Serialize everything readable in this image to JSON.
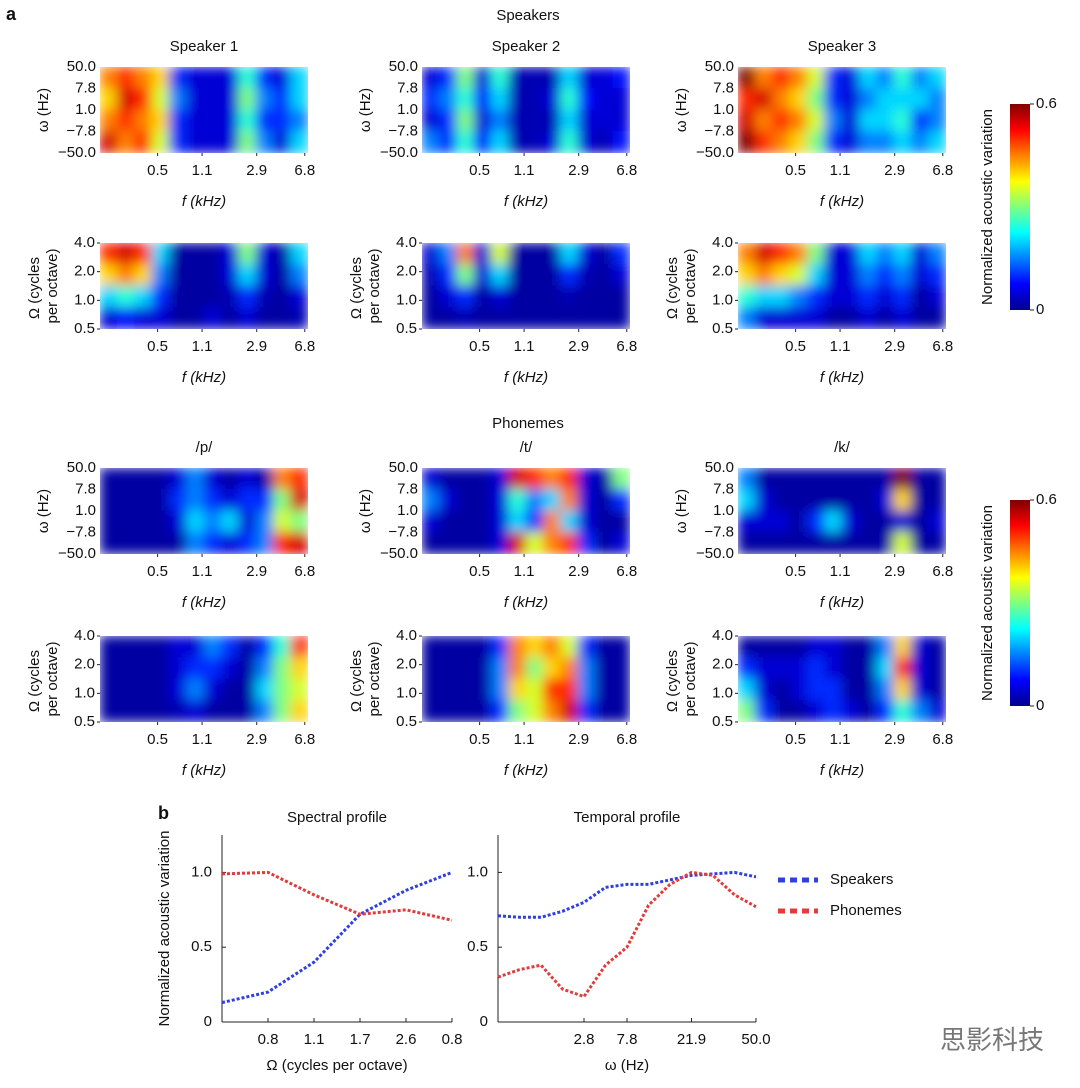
{
  "figure": {
    "label_a": "a",
    "label_b": "b",
    "watermark": "思影科技",
    "groups": [
      {
        "title": "Speakers",
        "colorbar": {
          "label": "Normalized acoustic variation",
          "clim": [
            0,
            0.6
          ],
          "ticks": [
            0,
            0.6
          ]
        }
      },
      {
        "title": "Phonemes",
        "colorbar": {
          "label": "Normalized acoustic variation",
          "clim": [
            0,
            0.6
          ],
          "ticks": [
            0,
            0.6
          ]
        }
      }
    ]
  },
  "chart_data": [
    {
      "type": "heatmap",
      "title": "Speaker 1",
      "xlabel": "f (kHz)",
      "xscale": "log",
      "xlim": [
        0.18,
        7.2
      ],
      "xticks": [
        0.5,
        1.1,
        2.9,
        6.8
      ],
      "ylabel": "ω (Hz)",
      "ycategories": [
        "50.0",
        "7.8",
        "1.0",
        "−7.8",
        "−50.0"
      ],
      "z": [
        [
          0.45,
          0.5,
          0.45,
          0.4,
          0.1,
          0.05,
          0.05,
          0.05,
          0.25,
          0.1,
          0.05,
          0.2
        ],
        [
          0.4,
          0.55,
          0.5,
          0.35,
          0.15,
          0.05,
          0.05,
          0.05,
          0.3,
          0.15,
          0.1,
          0.2
        ],
        [
          0.45,
          0.5,
          0.45,
          0.4,
          0.1,
          0.05,
          0.05,
          0.05,
          0.25,
          0.1,
          0.1,
          0.15
        ],
        [
          0.55,
          0.45,
          0.5,
          0.35,
          0.1,
          0.05,
          0.05,
          0.05,
          0.3,
          0.15,
          0.05,
          0.2
        ]
      ]
    },
    {
      "type": "heatmap",
      "title": "Speaker 2",
      "xlabel": "f (kHz)",
      "xscale": "log",
      "xlim": [
        0.18,
        7.2
      ],
      "xticks": [
        0.5,
        1.1,
        2.9,
        6.8
      ],
      "ylabel": "ω (Hz)",
      "ycategories": [
        "50.0",
        "7.8",
        "1.0",
        "−7.8",
        "−50.0"
      ],
      "z": [
        [
          0.05,
          0.1,
          0.3,
          0.05,
          0.25,
          0.03,
          0.03,
          0.03,
          0.2,
          0.05,
          0.05,
          0.08
        ],
        [
          0.1,
          0.15,
          0.25,
          0.08,
          0.2,
          0.03,
          0.03,
          0.05,
          0.25,
          0.08,
          0.05,
          0.05
        ],
        [
          0.05,
          0.1,
          0.3,
          0.05,
          0.15,
          0.03,
          0.03,
          0.03,
          0.2,
          0.05,
          0.05,
          0.05
        ],
        [
          0.15,
          0.1,
          0.25,
          0.08,
          0.2,
          0.03,
          0.03,
          0.05,
          0.25,
          0.05,
          0.03,
          0.08
        ]
      ]
    },
    {
      "type": "heatmap",
      "title": "Speaker 3",
      "xlabel": "f (kHz)",
      "xscale": "log",
      "xlim": [
        0.18,
        7.2
      ],
      "xticks": [
        0.5,
        1.1,
        2.9,
        6.8
      ],
      "ylabel": "ω (Hz)",
      "ycategories": [
        "50.0",
        "7.8",
        "1.0",
        "−7.8",
        "−50.0"
      ],
      "z": [
        [
          0.6,
          0.45,
          0.5,
          0.45,
          0.35,
          0.1,
          0.05,
          0.2,
          0.15,
          0.25,
          0.15,
          0.2
        ],
        [
          0.5,
          0.55,
          0.45,
          0.4,
          0.3,
          0.1,
          0.05,
          0.15,
          0.2,
          0.2,
          0.2,
          0.15
        ],
        [
          0.55,
          0.45,
          0.5,
          0.45,
          0.35,
          0.15,
          0.05,
          0.2,
          0.2,
          0.25,
          0.1,
          0.15
        ],
        [
          0.6,
          0.5,
          0.45,
          0.4,
          0.3,
          0.1,
          0.05,
          0.15,
          0.15,
          0.2,
          0.15,
          0.2
        ]
      ]
    },
    {
      "type": "heatmap",
      "xlabel": "f (kHz)",
      "xscale": "log",
      "xlim": [
        0.18,
        7.2
      ],
      "xticks": [
        0.5,
        1.1,
        2.9,
        6.8
      ],
      "ylabel": "Ω (cycles per octave)",
      "yscale": "log",
      "ylim": [
        0.5,
        4
      ],
      "yticks": [
        {
          "value": 4,
          "label": "4.0"
        },
        {
          "value": 2,
          "label": "2.0"
        },
        {
          "value": 1,
          "label": "1.0"
        },
        0.5
      ],
      "z": [
        [
          0.5,
          0.55,
          0.5,
          0.2,
          0.02,
          0.02,
          0.02,
          0.05,
          0.3,
          0.05,
          0.02,
          0.2
        ],
        [
          0.4,
          0.45,
          0.4,
          0.15,
          0.02,
          0.02,
          0.02,
          0.05,
          0.2,
          0.05,
          0.02,
          0.15
        ],
        [
          0.2,
          0.25,
          0.2,
          0.1,
          0.02,
          0.02,
          0.02,
          0.03,
          0.1,
          0.03,
          0.02,
          0.05
        ],
        [
          0.05,
          0.08,
          0.05,
          0.05,
          0.02,
          0.02,
          0.05,
          0.02,
          0.05,
          0.02,
          0.02,
          0.03
        ]
      ]
    },
    {
      "type": "heatmap",
      "xlabel": "f (kHz)",
      "xscale": "log",
      "xlim": [
        0.18,
        7.2
      ],
      "xticks": [
        0.5,
        1.1,
        2.9,
        6.8
      ],
      "ylabel": "Ω (cycles per octave)",
      "yscale": "log",
      "ylim": [
        0.5,
        4
      ],
      "yticks": [
        {
          "value": 4,
          "label": "4.0"
        },
        {
          "value": 2,
          "label": "2.0"
        },
        {
          "value": 1,
          "label": "1.0"
        },
        0.5
      ],
      "z": [
        [
          0.05,
          0.15,
          0.45,
          0.05,
          0.35,
          0.02,
          0.02,
          0.02,
          0.2,
          0.05,
          0.02,
          0.1
        ],
        [
          0.03,
          0.1,
          0.3,
          0.05,
          0.2,
          0.02,
          0.02,
          0.02,
          0.1,
          0.03,
          0.02,
          0.05
        ],
        [
          0.02,
          0.05,
          0.1,
          0.02,
          0.05,
          0.02,
          0.02,
          0.02,
          0.03,
          0.02,
          0.02,
          0.02
        ],
        [
          0.02,
          0.02,
          0.03,
          0.02,
          0.02,
          0.02,
          0.02,
          0.02,
          0.02,
          0.02,
          0.02,
          0.02
        ]
      ]
    },
    {
      "type": "heatmap",
      "xlabel": "f (kHz)",
      "xscale": "log",
      "xlim": [
        0.18,
        7.2
      ],
      "xticks": [
        0.5,
        1.1,
        2.9,
        6.8
      ],
      "ylabel": "Ω (cycles per octave)",
      "yscale": "log",
      "ylim": [
        0.5,
        4
      ],
      "yticks": [
        {
          "value": 4,
          "label": "4.0"
        },
        {
          "value": 2,
          "label": "2.0"
        },
        {
          "value": 1,
          "label": "1.0"
        },
        0.5
      ],
      "z": [
        [
          0.45,
          0.55,
          0.5,
          0.45,
          0.3,
          0.05,
          0.05,
          0.2,
          0.15,
          0.2,
          0.05,
          0.15
        ],
        [
          0.4,
          0.45,
          0.4,
          0.35,
          0.2,
          0.05,
          0.05,
          0.15,
          0.1,
          0.15,
          0.05,
          0.1
        ],
        [
          0.25,
          0.2,
          0.2,
          0.15,
          0.1,
          0.05,
          0.05,
          0.1,
          0.05,
          0.1,
          0.02,
          0.05
        ],
        [
          0.15,
          0.05,
          0.05,
          0.05,
          0.05,
          0.02,
          0.02,
          0.05,
          0.02,
          0.05,
          0.02,
          0.02
        ]
      ]
    },
    {
      "type": "heatmap",
      "title": "/p/",
      "xlabel": "f (kHz)",
      "xscale": "log",
      "xlim": [
        0.18,
        7.2
      ],
      "xticks": [
        0.5,
        1.1,
        2.9,
        6.8
      ],
      "ylabel": "ω (Hz)",
      "ycategories": [
        "50.0",
        "7.8",
        "1.0",
        "−7.8",
        "−50.0"
      ],
      "z": [
        [
          0.02,
          0.02,
          0.02,
          0.02,
          0.05,
          0.15,
          0.05,
          0.02,
          0.05,
          0.02,
          0.45,
          0.5
        ],
        [
          0.02,
          0.02,
          0.02,
          0.02,
          0.1,
          0.15,
          0.1,
          0.05,
          0.1,
          0.1,
          0.3,
          0.55
        ],
        [
          0.02,
          0.02,
          0.02,
          0.02,
          0.05,
          0.2,
          0.15,
          0.2,
          0.05,
          0.15,
          0.35,
          0.3
        ],
        [
          0.02,
          0.02,
          0.02,
          0.02,
          0.02,
          0.15,
          0.1,
          0.05,
          0.1,
          0.15,
          0.5,
          0.55
        ]
      ]
    },
    {
      "type": "heatmap",
      "title": "/t/",
      "xlabel": "f (kHz)",
      "xscale": "log",
      "xlim": [
        0.18,
        7.2
      ],
      "xticks": [
        0.5,
        1.1,
        2.9,
        6.8
      ],
      "ylabel": "ω (Hz)",
      "ycategories": [
        "50.0",
        "7.8",
        "1.0",
        "−7.8",
        "−50.0"
      ],
      "z": [
        [
          0.05,
          0.02,
          0.02,
          0.02,
          0.05,
          0.55,
          0.5,
          0.45,
          0.5,
          0.05,
          0.02,
          0.3
        ],
        [
          0.15,
          0.05,
          0.02,
          0.02,
          0.05,
          0.25,
          0.15,
          0.2,
          0.45,
          0.05,
          0.02,
          0.1
        ],
        [
          0.05,
          0.02,
          0.02,
          0.02,
          0.05,
          0.2,
          0.1,
          0.45,
          0.2,
          0.05,
          0.02,
          0.02
        ],
        [
          0.02,
          0.02,
          0.02,
          0.02,
          0.05,
          0.55,
          0.35,
          0.45,
          0.5,
          0.1,
          0.02,
          0.05
        ]
      ]
    },
    {
      "type": "heatmap",
      "title": "/k/",
      "xlabel": "f (kHz)",
      "xscale": "log",
      "xlim": [
        0.18,
        7.2
      ],
      "xticks": [
        0.5,
        1.1,
        2.9,
        6.8
      ],
      "ylabel": "ω (Hz)",
      "ycategories": [
        "50.0",
        "7.8",
        "1.0",
        "−7.8",
        "−50.0"
      ],
      "z": [
        [
          0.15,
          0.02,
          0.02,
          0.02,
          0.02,
          0.02,
          0.02,
          0.02,
          0.02,
          0.6,
          0.02,
          0.02
        ],
        [
          0.2,
          0.05,
          0.02,
          0.02,
          0.02,
          0.02,
          0.02,
          0.02,
          0.05,
          0.4,
          0.02,
          0.02
        ],
        [
          0.05,
          0.05,
          0.05,
          0.02,
          0.1,
          0.2,
          0.05,
          0.02,
          0.02,
          0.05,
          0.02,
          0.05
        ],
        [
          0.02,
          0.02,
          0.02,
          0.02,
          0.02,
          0.02,
          0.02,
          0.02,
          0.02,
          0.35,
          0.02,
          0.02
        ]
      ]
    },
    {
      "type": "heatmap",
      "xlabel": "f (kHz)",
      "xscale": "log",
      "xlim": [
        0.18,
        7.2
      ],
      "xticks": [
        0.5,
        1.1,
        2.9,
        6.8
      ],
      "ylabel": "Ω (cycles per octave)",
      "yscale": "log",
      "ylim": [
        0.5,
        4
      ],
      "yticks": [
        {
          "value": 4,
          "label": "4.0"
        },
        {
          "value": 2,
          "label": "2.0"
        },
        {
          "value": 1,
          "label": "1.0"
        },
        0.5
      ],
      "z": [
        [
          0.02,
          0.02,
          0.02,
          0.02,
          0.05,
          0.05,
          0.15,
          0.1,
          0.02,
          0.1,
          0.25,
          0.5
        ],
        [
          0.02,
          0.02,
          0.02,
          0.02,
          0.05,
          0.1,
          0.1,
          0.05,
          0.02,
          0.15,
          0.3,
          0.4
        ],
        [
          0.02,
          0.02,
          0.02,
          0.02,
          0.05,
          0.15,
          0.05,
          0.02,
          0.02,
          0.2,
          0.3,
          0.35
        ],
        [
          0.02,
          0.02,
          0.02,
          0.02,
          0.03,
          0.05,
          0.02,
          0.02,
          0.02,
          0.15,
          0.3,
          0.4
        ]
      ]
    },
    {
      "type": "heatmap",
      "xlabel": "f (kHz)",
      "xscale": "log",
      "xlim": [
        0.18,
        7.2
      ],
      "xticks": [
        0.5,
        1.1,
        2.9,
        6.8
      ],
      "ylabel": "Ω (cycles per octave)",
      "yscale": "log",
      "ylim": [
        0.5,
        4
      ],
      "yticks": [
        {
          "value": 4,
          "label": "4.0"
        },
        {
          "value": 2,
          "label": "2.0"
        },
        {
          "value": 1,
          "label": "1.0"
        },
        0.5
      ],
      "z": [
        [
          0.02,
          0.02,
          0.02,
          0.02,
          0.1,
          0.45,
          0.4,
          0.45,
          0.35,
          0.1,
          0.02,
          0.02
        ],
        [
          0.02,
          0.02,
          0.02,
          0.02,
          0.15,
          0.45,
          0.3,
          0.4,
          0.45,
          0.15,
          0.02,
          0.02
        ],
        [
          0.02,
          0.02,
          0.02,
          0.02,
          0.15,
          0.4,
          0.35,
          0.5,
          0.5,
          0.15,
          0.02,
          0.02
        ],
        [
          0.02,
          0.02,
          0.02,
          0.02,
          0.1,
          0.3,
          0.35,
          0.45,
          0.55,
          0.1,
          0.02,
          0.02
        ]
      ]
    },
    {
      "type": "heatmap",
      "xlabel": "f (kHz)",
      "xscale": "log",
      "xlim": [
        0.18,
        7.2
      ],
      "xticks": [
        0.5,
        1.1,
        2.9,
        6.8
      ],
      "ylabel": "Ω (cycles per octave)",
      "yscale": "log",
      "ylim": [
        0.5,
        4
      ],
      "yticks": [
        {
          "value": 4,
          "label": "4.0"
        },
        {
          "value": 2,
          "label": "2.0"
        },
        {
          "value": 1,
          "label": "1.0"
        },
        0.5
      ],
      "z": [
        [
          0.02,
          0.02,
          0.02,
          0.02,
          0.05,
          0.05,
          0.02,
          0.02,
          0.15,
          0.4,
          0.05,
          0.02
        ],
        [
          0.1,
          0.05,
          0.05,
          0.05,
          0.1,
          0.05,
          0.02,
          0.02,
          0.2,
          0.5,
          0.05,
          0.02
        ],
        [
          0.2,
          0.05,
          0.02,
          0.05,
          0.1,
          0.1,
          0.02,
          0.02,
          0.15,
          0.4,
          0.05,
          0.02
        ],
        [
          0.3,
          0.1,
          0.02,
          0.02,
          0.05,
          0.1,
          0.05,
          0.02,
          0.1,
          0.25,
          0.15,
          0.05
        ]
      ]
    },
    {
      "type": "line",
      "title": "Spectral profile",
      "xlabel": "Ω (cycles per octave)",
      "ylabel": "Normalized acoustic variation",
      "categories": [
        null,
        "0.8",
        "1.1",
        "1.7",
        "2.6",
        "0.8"
      ],
      "ylim": [
        0,
        1.25
      ],
      "yticks": [
        0,
        0.5,
        {
          "value": 1,
          "label": "1.0"
        }
      ],
      "linestyle": "dotted",
      "series": [
        {
          "color": "#2f3fe0",
          "values": [
            0.13,
            0.2,
            0.4,
            0.72,
            0.88,
            1.0
          ]
        },
        {
          "color": "#e23b3b",
          "values": [
            0.99,
            1.0,
            0.85,
            0.72,
            0.75,
            0.68
          ]
        }
      ]
    },
    {
      "type": "line",
      "title": "Temporal profile",
      "xlabel": "ω (Hz)",
      "legend": "right",
      "categories": [
        null,
        null,
        null,
        null,
        "2.8",
        null,
        "7.8",
        null,
        null,
        "21.9",
        null,
        null,
        "50.0"
      ],
      "ylim": [
        0,
        1.25
      ],
      "yticks": [
        0,
        0.5,
        {
          "value": 1,
          "label": "1.0"
        }
      ],
      "linestyle": "dotted",
      "series": [
        {
          "name": "Speakers",
          "color": "#2f3fe0",
          "values": [
            0.71,
            0.7,
            0.7,
            0.74,
            0.8,
            0.9,
            0.92,
            0.92,
            0.95,
            0.98,
            0.99,
            1.0,
            0.97
          ]
        },
        {
          "name": "Phonemes",
          "color": "#e23b3b",
          "values": [
            0.3,
            0.35,
            0.38,
            0.22,
            0.17,
            0.38,
            0.5,
            0.78,
            0.92,
            1.0,
            0.98,
            0.85,
            0.77
          ]
        }
      ]
    }
  ]
}
